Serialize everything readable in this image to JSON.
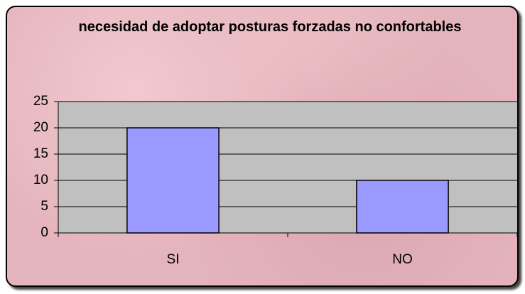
{
  "chart_data": {
    "type": "bar",
    "title": "necesidad de adoptar posturas forzadas no confortables",
    "categories": [
      "SI",
      "NO"
    ],
    "values": [
      20,
      10
    ],
    "color": "#9999ff",
    "ylim": [
      0,
      25
    ],
    "yticks": [
      0,
      5,
      10,
      15,
      20,
      25
    ],
    "grid": true
  }
}
